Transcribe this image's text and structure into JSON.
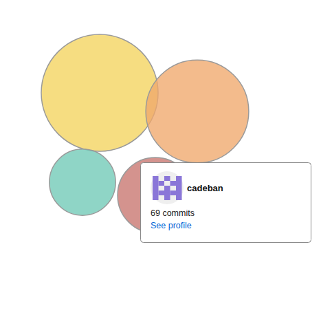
{
  "chart_data": {
    "type": "bubble",
    "bubbles": [
      {
        "size": 165,
        "color": "#f4d35e"
      },
      {
        "size": 128,
        "color": "#f0a86c"
      },
      {
        "size": 53,
        "color": "#6fc9b6"
      },
      {
        "size": 69,
        "color": "#c8746e"
      }
    ],
    "tooltip": {
      "name": "cadeban",
      "text": "69 commits",
      "link": "See profile",
      "color": "#0366d6"
    }
  }
}
